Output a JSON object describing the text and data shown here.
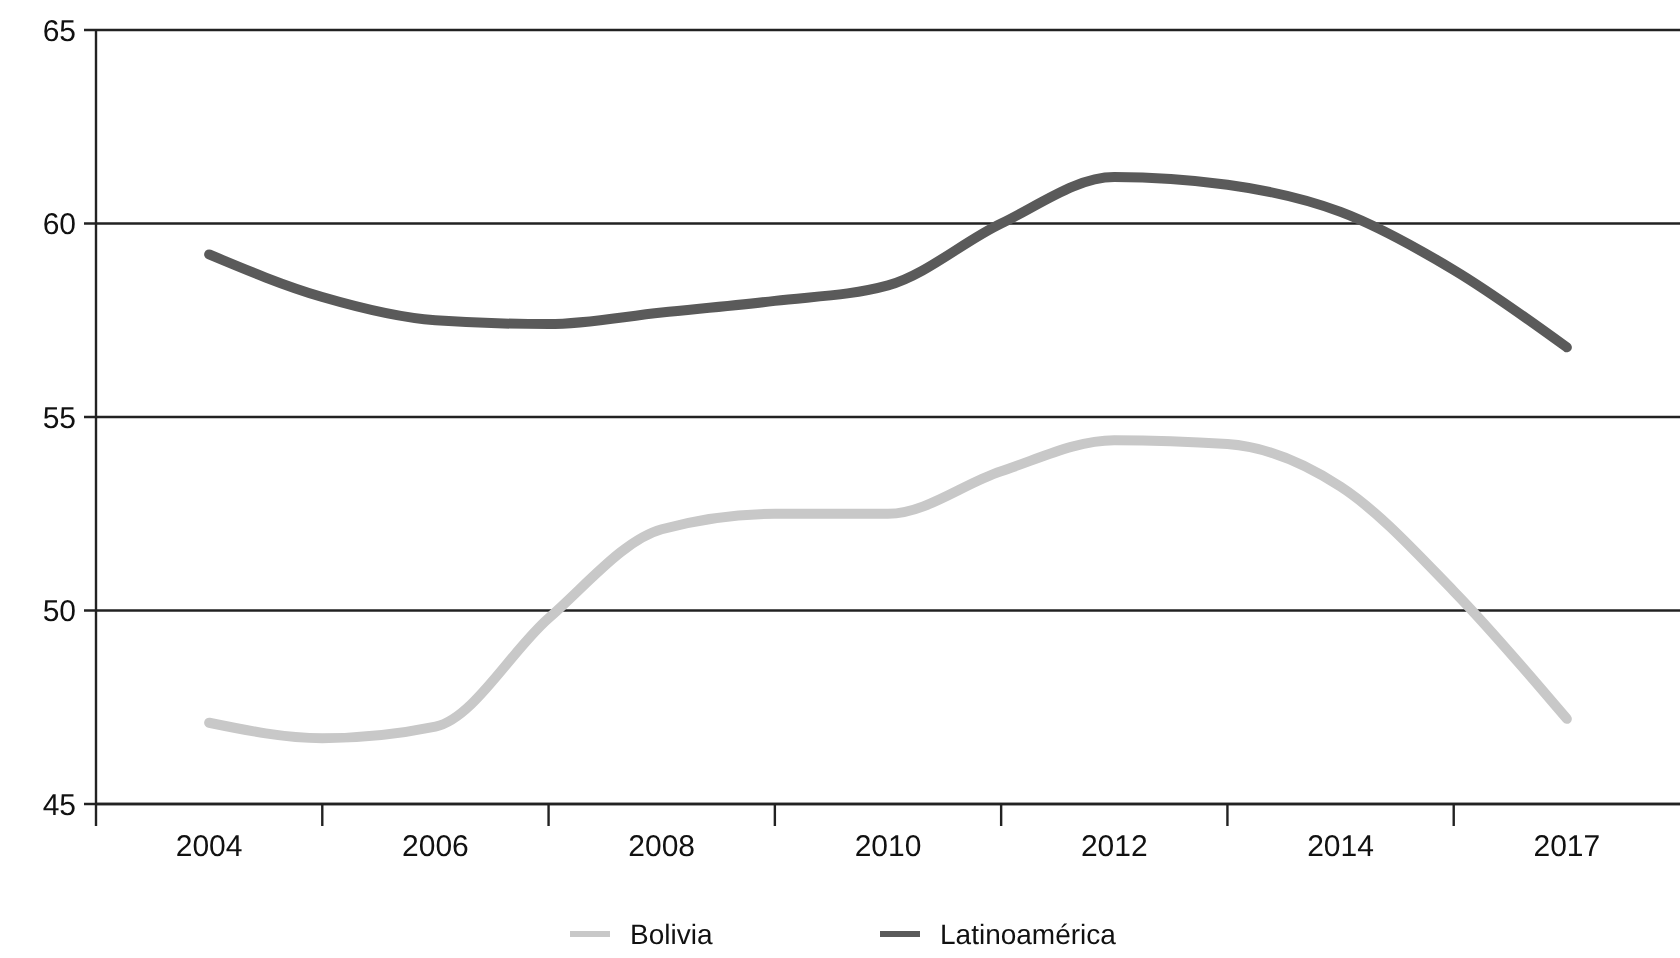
{
  "chart_data": {
    "type": "line",
    "categories": [
      "2004",
      null,
      "2006",
      null,
      "2008",
      null,
      "2010",
      null,
      "2012",
      null,
      "2014",
      null,
      "2017"
    ],
    "series": [
      {
        "name": "Bolivia",
        "color": "#c8c8c8",
        "values": [
          47.1,
          46.7,
          47.0,
          49.8,
          52.1,
          52.5,
          52.5,
          53.6,
          54.4,
          54.3,
          53.2,
          50.5,
          47.2
        ]
      },
      {
        "name": "Latinoamérica",
        "color": "#5a5a5a",
        "values": [
          59.2,
          58.1,
          57.5,
          57.4,
          57.7,
          58.0,
          58.4,
          60.0,
          61.2,
          61.0,
          60.3,
          58.8,
          56.8
        ]
      }
    ],
    "ylim": [
      45,
      65
    ],
    "yticks": [
      45,
      50,
      55,
      60,
      65
    ],
    "grid": "y",
    "legend": "bottom",
    "marker": "none",
    "line_style": "solid"
  }
}
